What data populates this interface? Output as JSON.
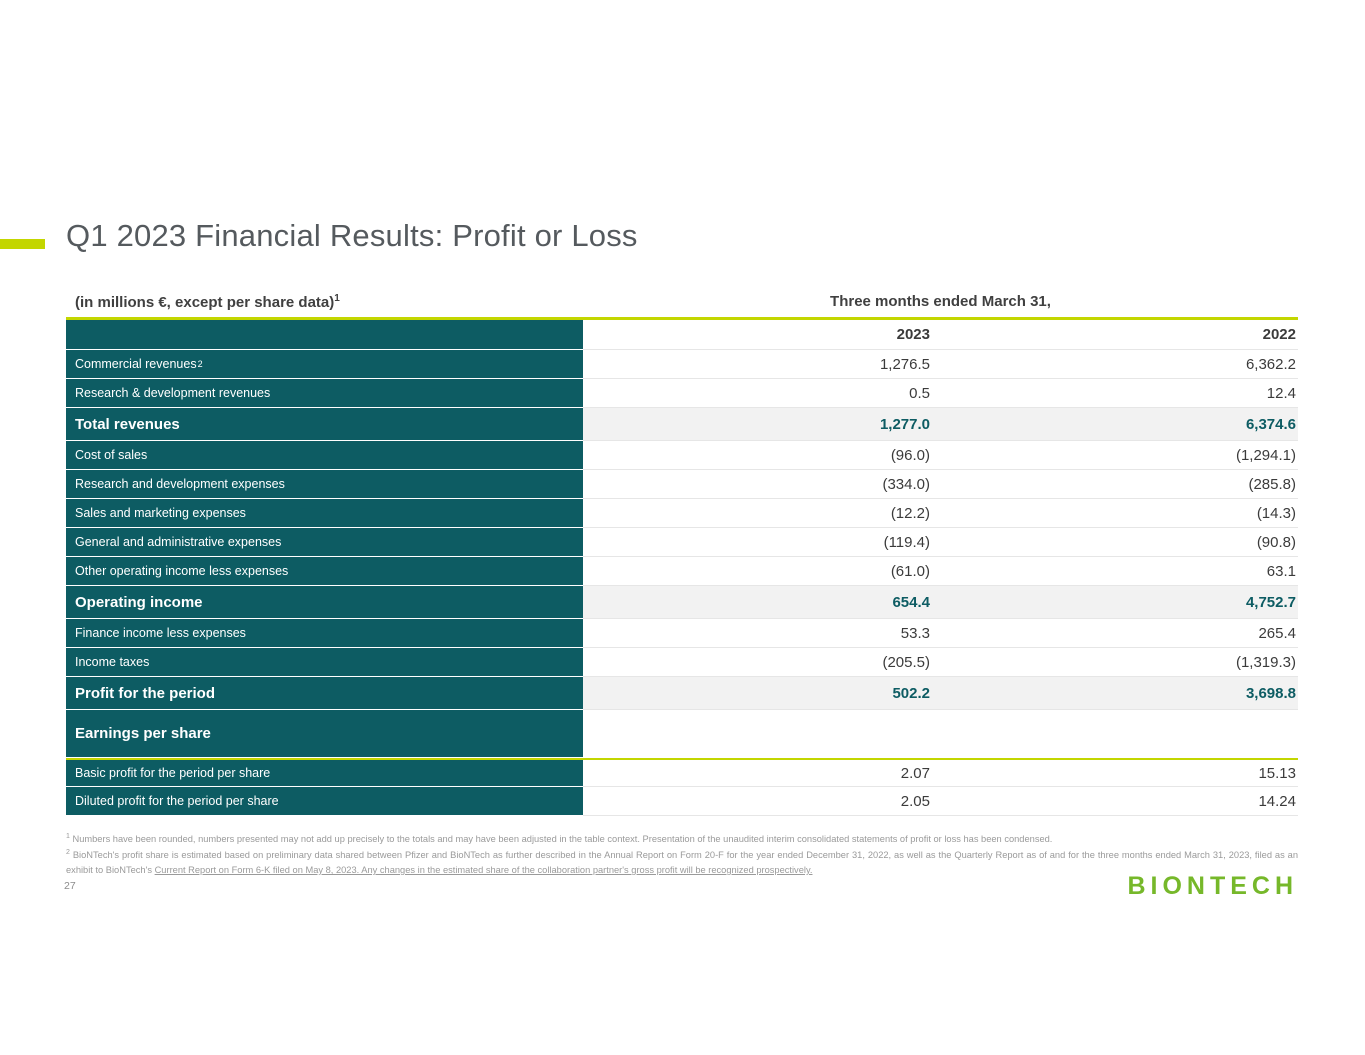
{
  "slide": {
    "title": "Q1 2023 Financial Results: Profit or Loss",
    "page_number": "27",
    "logo_text": "BIONTECH"
  },
  "colors": {
    "teal": "#0d5c63",
    "lime": "#c3d600",
    "logo_green": "#76b82a"
  },
  "table": {
    "unit_label": "(in millions €, except per share data)",
    "unit_label_sup": "1",
    "period_header": "Three months ended March 31,",
    "col_2023": "2023",
    "col_2022": "2022",
    "rows": [
      {
        "label": "Commercial revenues",
        "sup": "2",
        "v2023": "1,276.5",
        "v2022": "6,362.2",
        "style": "normal"
      },
      {
        "label": "Research & development revenues",
        "v2023": "0.5",
        "v2022": "12.4",
        "style": "normal"
      },
      {
        "label": "Total revenues",
        "v2023": "1,277.0",
        "v2022": "6,374.6",
        "style": "total"
      },
      {
        "label": "Cost of sales",
        "v2023": "(96.0)",
        "v2022": "(1,294.1)",
        "style": "normal"
      },
      {
        "label": "Research and development expenses",
        "v2023": "(334.0)",
        "v2022": "(285.8)",
        "style": "normal"
      },
      {
        "label": "Sales and marketing expenses",
        "v2023": "(12.2)",
        "v2022": "(14.3)",
        "style": "normal"
      },
      {
        "label": "General and administrative expenses",
        "v2023": "(119.4)",
        "v2022": "(90.8)",
        "style": "normal"
      },
      {
        "label": "Other operating income less expenses",
        "v2023": "(61.0)",
        "v2022": "63.1",
        "style": "normal"
      },
      {
        "label": "Operating income",
        "v2023": "654.4",
        "v2022": "4,752.7",
        "style": "total"
      },
      {
        "label": "Finance income less expenses",
        "v2023": "53.3",
        "v2022": "265.4",
        "style": "normal"
      },
      {
        "label": "Income taxes",
        "v2023": "(205.5)",
        "v2022": "(1,319.3)",
        "style": "normal"
      },
      {
        "label": "Profit for the period",
        "v2023": "502.2",
        "v2022": "3,698.8",
        "style": "total"
      },
      {
        "label": "Earnings per share",
        "v2023": "",
        "v2022": "",
        "style": "section"
      },
      {
        "label": "Basic profit for the period per share",
        "v2023": "2.07",
        "v2022": "15.13",
        "style": "normal",
        "lime_top": true
      },
      {
        "label": "Diluted profit for the period per share",
        "v2023": "2.05",
        "v2022": "14.24",
        "style": "normal"
      }
    ]
  },
  "footnotes": {
    "note1_sup": "1",
    "note1": "Numbers have been rounded, numbers presented may not add up precisely to the totals and may have been adjusted in the table context. Presentation of the unaudited interim consolidated statements of profit or loss has been condensed.",
    "note2_sup": "2",
    "note2_part1": "BioNTech's profit share is estimated based on preliminary data shared between Pfizer and BioNTech as further described in the Annual Report on Form 20-F for the year ended December 31, 2022, as well as the Quarterly Report as of and for the three months ended March 31, 2023, filed as an exhibit to BioNTech's ",
    "note2_part2": "Current Report on Form 6-K filed on May 8, 2023. Any changes in the estimated share of the collaboration partner's gross profit will be recognized prospectively."
  }
}
